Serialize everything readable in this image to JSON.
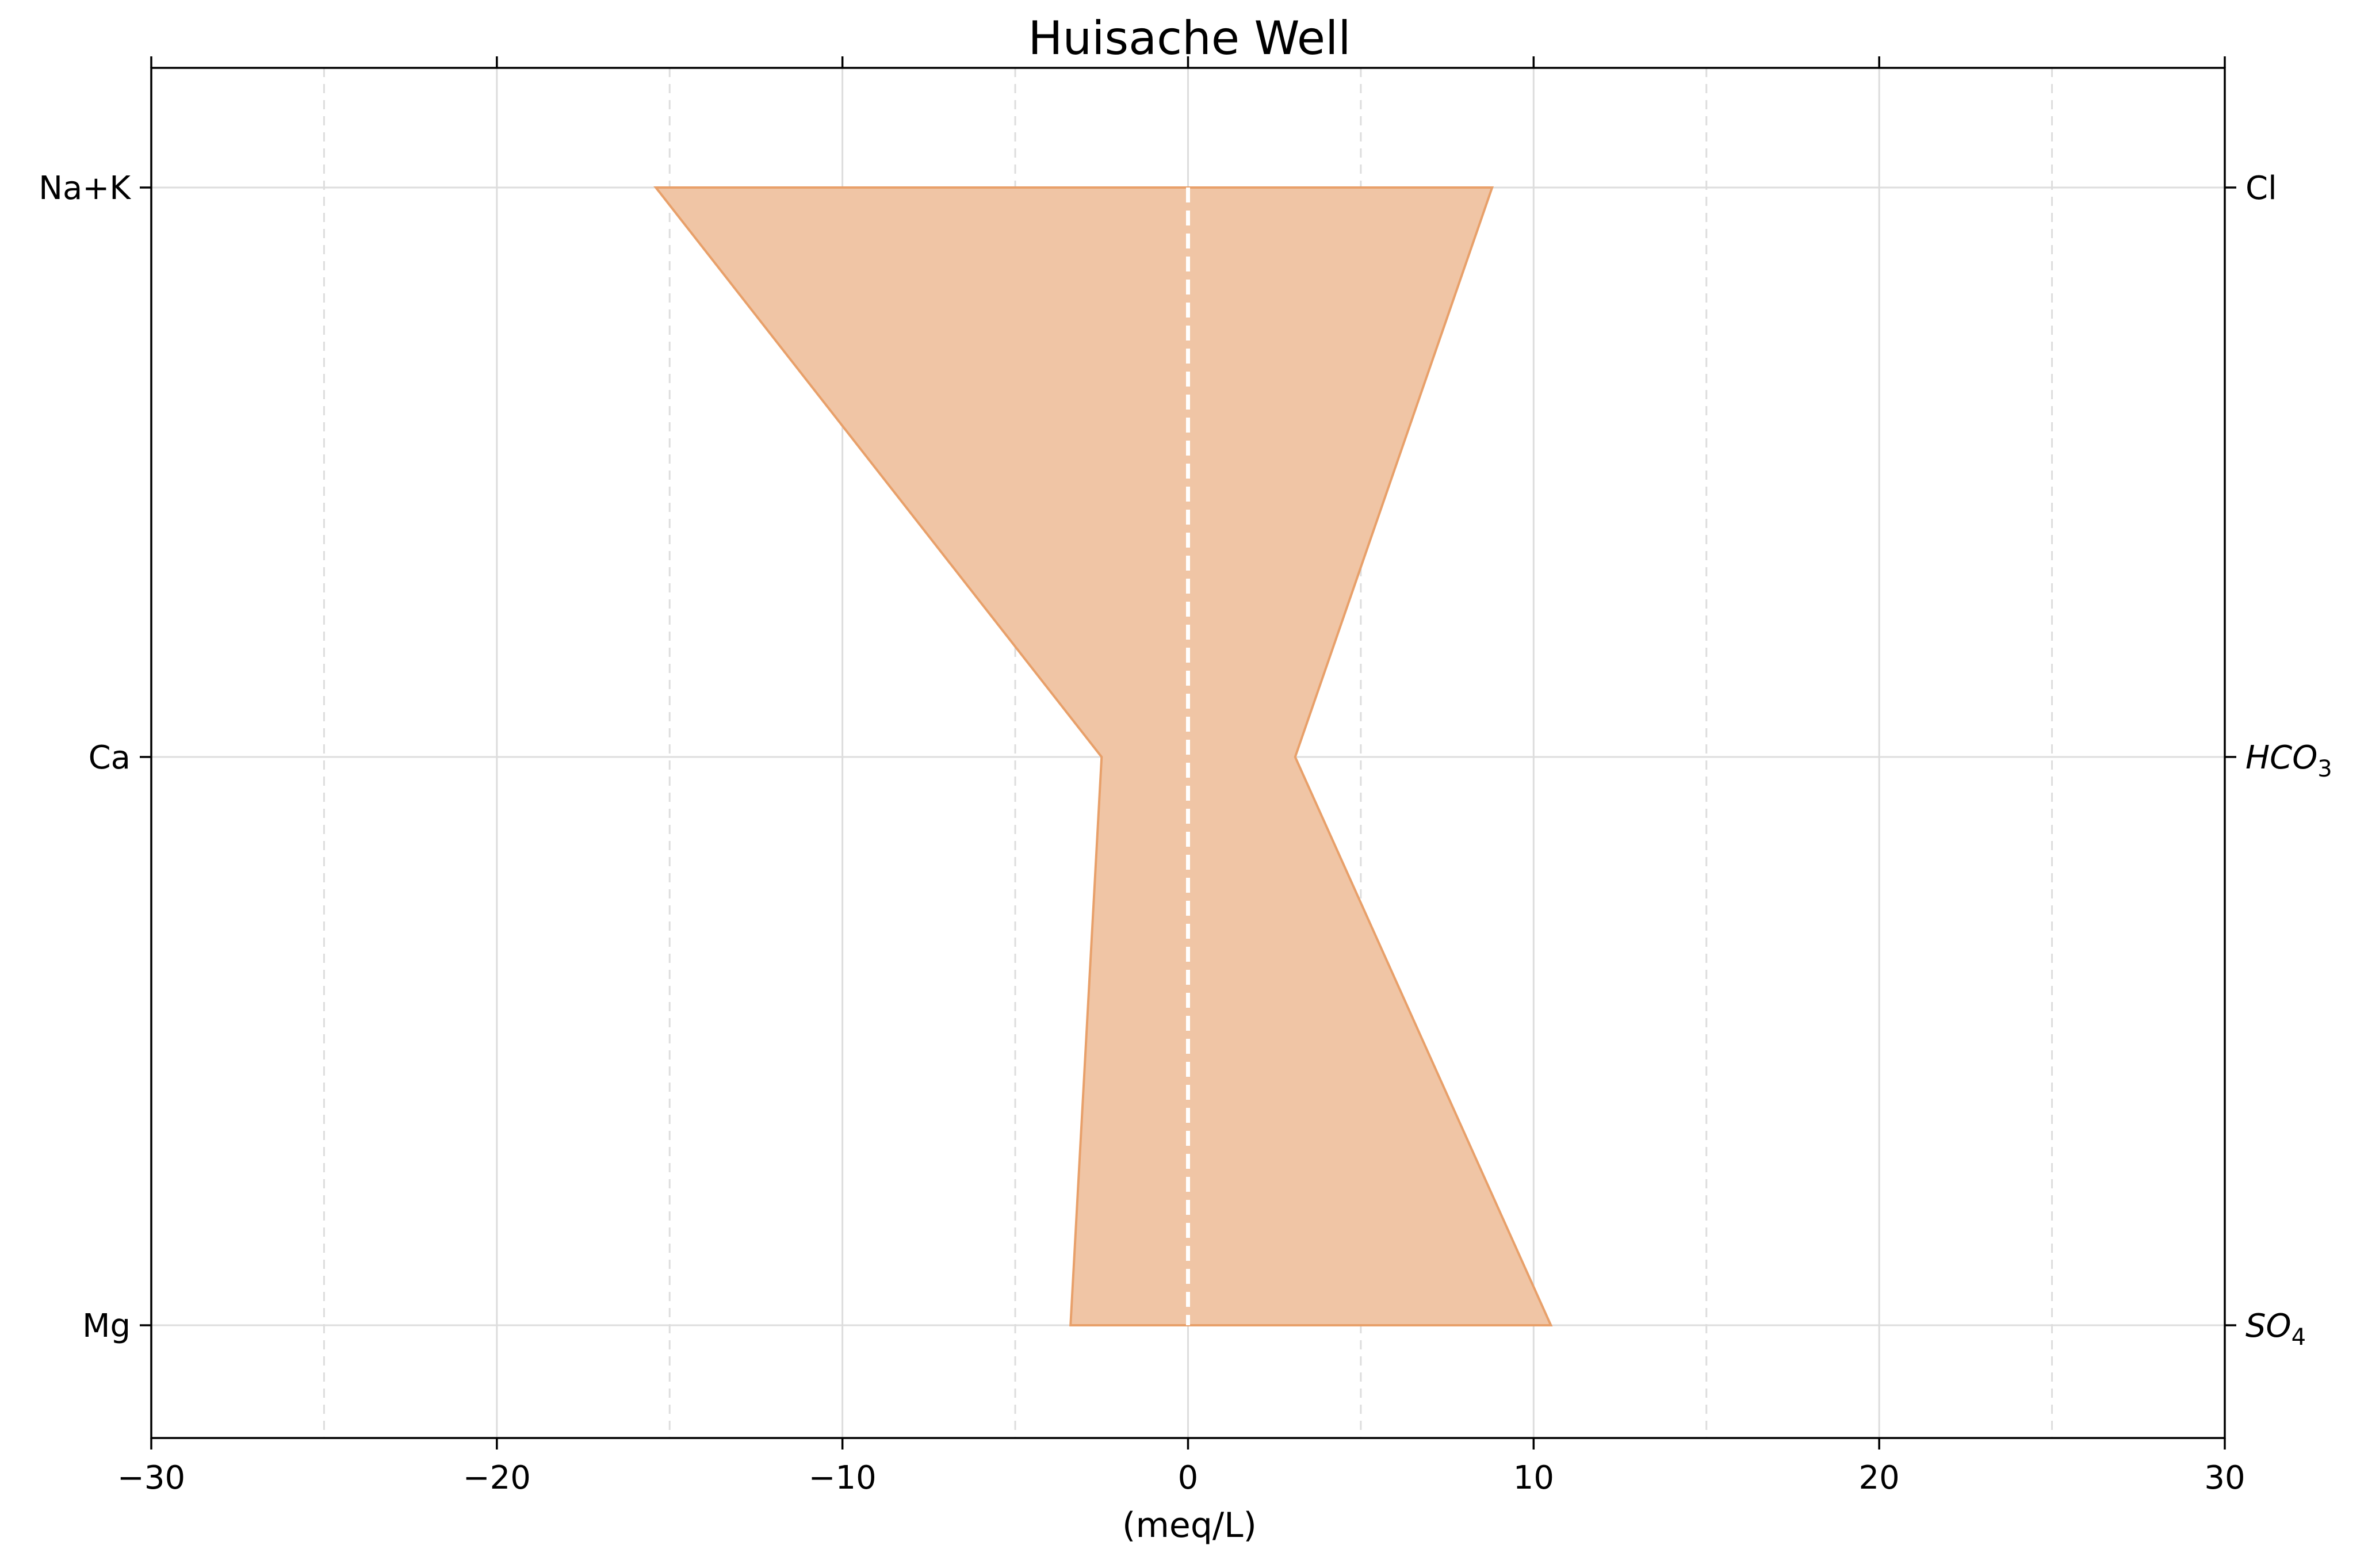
{
  "chart_data": {
    "type": "area",
    "title": "Huisache Well",
    "xlabel": "(meq/L)",
    "xlim": [
      -30,
      30
    ],
    "x_ticks": [
      -30,
      -20,
      -10,
      0,
      10,
      20,
      30
    ],
    "x_tick_labels": [
      "−30",
      "−20",
      "−10",
      "0",
      "10",
      "20",
      "30"
    ],
    "x_minor_ticks": [
      -25,
      -15,
      -5,
      5,
      15,
      25
    ],
    "grid": true,
    "left_labels": [
      "Na+K",
      "Ca",
      "Mg"
    ],
    "right_labels": [
      {
        "base": "Cl",
        "sub": ""
      },
      {
        "base": "HCO",
        "sub": "3"
      },
      {
        "base": "SO",
        "sub": "4"
      }
    ],
    "series": [
      {
        "cations": [
          -15.4,
          -2.5,
          -3.4
        ],
        "anions": [
          8.8,
          3.1,
          10.5
        ]
      }
    ],
    "colors": {
      "fill": "#f0c5a5",
      "edge": "#e8a06a",
      "zero_line": "#ffffff",
      "grid": "#dddddd",
      "axis": "#000000"
    }
  }
}
